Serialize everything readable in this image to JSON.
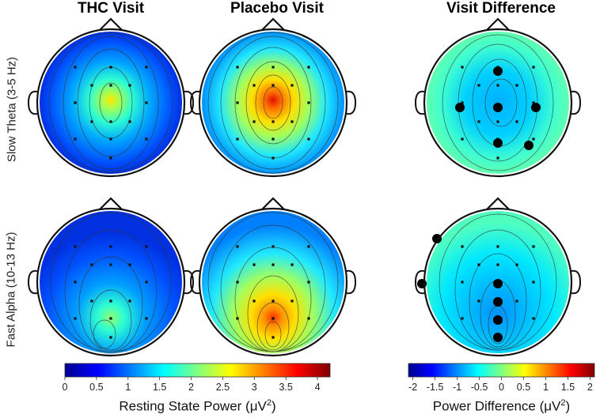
{
  "columns": [
    {
      "title": "THC Visit"
    },
    {
      "title": "Placebo Visit"
    },
    {
      "title": "Visit Difference"
    }
  ],
  "rows": [
    {
      "label": "Slow Theta (3-5 Hz)"
    },
    {
      "label": "Fast Alpha (10-13 Hz)"
    }
  ],
  "colorbars": {
    "power": {
      "label": "Resting State Power (μV²)",
      "label_main": "Resting State Power (μV",
      "label_sup": "2",
      "label_end": ")",
      "range": [
        0,
        4.2
      ],
      "ticks": [
        "0",
        "0.5",
        "1",
        "1.5",
        "2",
        "2.5",
        "3",
        "3.5",
        "4"
      ]
    },
    "difference": {
      "label": "Power Difference (μV²)",
      "label_main": "Power Difference (μV",
      "label_sup": "2",
      "label_end": ")",
      "range": [
        -2.1,
        2.1
      ],
      "ticks": [
        "-2",
        "-1.5",
        "-1",
        "-0.5",
        "0",
        "0.5",
        "1",
        "1.5",
        "2"
      ]
    }
  },
  "colors": {
    "low": "#00008f",
    "blue": "#0060ff",
    "cyan": "#00e0ff",
    "yellow": "#ffe600",
    "red": "#e00000",
    "high": "#800000"
  },
  "maps": [
    {
      "id": "theta-thc",
      "peak": "center",
      "peak_value": 2.2,
      "edge_value": 0.3
    },
    {
      "id": "theta-placebo",
      "peak": "center",
      "peak_value": 3.6,
      "edge_value": 0.7
    },
    {
      "id": "theta-diff",
      "significant_electrodes": 6
    },
    {
      "id": "alpha-thc",
      "peak": "posterior",
      "peak_value": 1.8,
      "edge_value": 0.2
    },
    {
      "id": "alpha-placebo",
      "peak": "posterior",
      "peak_value": 3.5,
      "edge_value": 0.9
    },
    {
      "id": "alpha-diff",
      "significant_electrodes": 6
    }
  ]
}
